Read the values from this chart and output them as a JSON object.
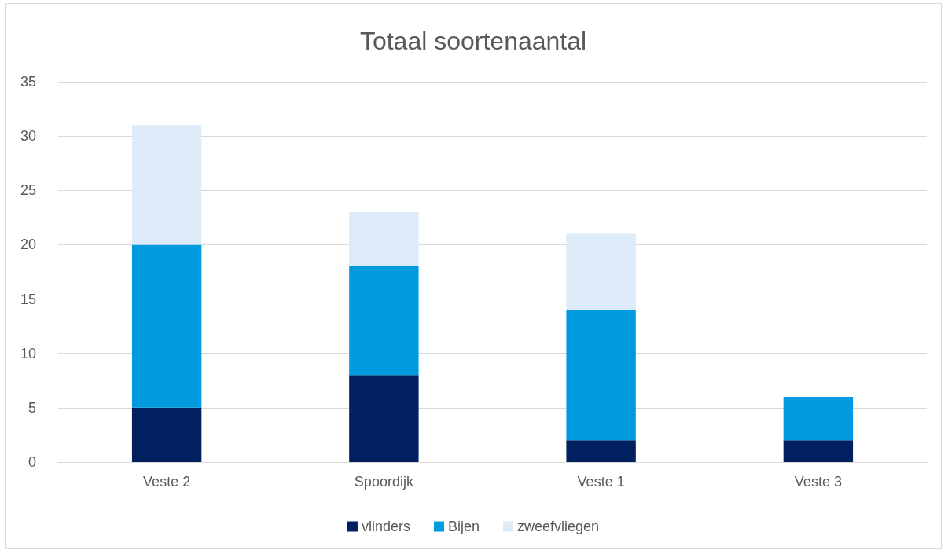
{
  "chart_data": {
    "type": "bar",
    "title": "Totaal soortenaantal",
    "categories": [
      "Veste 2",
      "Spoordijk",
      "Veste 1",
      "Veste 3"
    ],
    "series": [
      {
        "name": "vlinders",
        "color": "#002060",
        "values": [
          5,
          8,
          2,
          2
        ]
      },
      {
        "name": "Bijen",
        "color": "#009ade",
        "values": [
          15,
          10,
          12,
          4
        ]
      },
      {
        "name": "zweefvliegen",
        "color": "#ddebf9",
        "values": [
          11,
          5,
          7,
          0
        ]
      }
    ],
    "stacked": true,
    "ylim": [
      0,
      35
    ],
    "yticks": [
      0,
      5,
      10,
      15,
      20,
      25,
      30,
      35
    ],
    "grid": "y",
    "legend": "bottom"
  }
}
